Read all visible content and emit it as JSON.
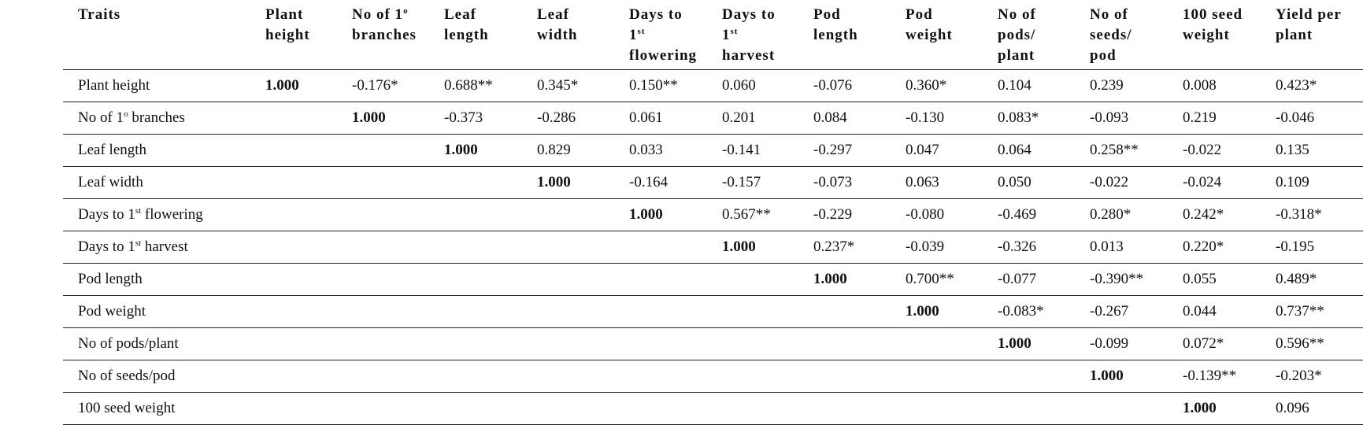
{
  "table": {
    "columns": [
      [
        {
          "text": "Traits"
        }
      ],
      [
        {
          "text": "Plant height"
        }
      ],
      [
        {
          "text": "No of 1"
        },
        {
          "text": "o",
          "sup": true
        },
        {
          "text": " branches"
        }
      ],
      [
        {
          "text": "Leaf length"
        }
      ],
      [
        {
          "text": "Leaf width"
        }
      ],
      [
        {
          "text": "Days to 1"
        },
        {
          "text": "st",
          "sup": true
        },
        {
          "text": " flowering"
        }
      ],
      [
        {
          "text": "Days to 1"
        },
        {
          "text": "st",
          "sup": true
        },
        {
          "text": " harvest"
        }
      ],
      [
        {
          "text": "Pod length"
        }
      ],
      [
        {
          "text": "Pod weight"
        }
      ],
      [
        {
          "text": "No of pods/ plant"
        }
      ],
      [
        {
          "text": "No of seeds/ pod"
        }
      ],
      [
        {
          "text": "100 seed weight"
        }
      ],
      [
        {
          "text": "Yield per plant"
        }
      ]
    ],
    "rows": [
      {
        "label": [
          {
            "text": "Plant height"
          }
        ],
        "cells": [
          "1.000",
          "-0.176*",
          "0.688**",
          "0.345*",
          "0.150**",
          "0.060",
          "-0.076",
          "0.360*",
          "0.104",
          "0.239",
          "0.008",
          "0.423*"
        ]
      },
      {
        "label": [
          {
            "text": "No of 1"
          },
          {
            "text": "o",
            "sup": true
          },
          {
            "text": " branches"
          }
        ],
        "cells": [
          null,
          "1.000",
          "-0.373",
          "-0.286",
          "0.061",
          "0.201",
          "0.084",
          "-0.130",
          "0.083*",
          "-0.093",
          "0.219",
          "-0.046"
        ]
      },
      {
        "label": [
          {
            "text": "Leaf length"
          }
        ],
        "cells": [
          null,
          null,
          "1.000",
          "0.829",
          "0.033",
          "-0.141",
          "-0.297",
          "0.047",
          "0.064",
          "0.258**",
          "-0.022",
          "0.135"
        ]
      },
      {
        "label": [
          {
            "text": "Leaf width"
          }
        ],
        "cells": [
          null,
          null,
          null,
          "1.000",
          "-0.164",
          "-0.157",
          "-0.073",
          "0.063",
          "0.050",
          "-0.022",
          "-0.024",
          "0.109"
        ]
      },
      {
        "label": [
          {
            "text": "Days to 1"
          },
          {
            "text": "st",
            "sup": true
          },
          {
            "text": " flowering"
          }
        ],
        "cells": [
          null,
          null,
          null,
          null,
          "1.000",
          "0.567**",
          "-0.229",
          "-0.080",
          "-0.469",
          "0.280*",
          "0.242*",
          "-0.318*"
        ]
      },
      {
        "label": [
          {
            "text": "Days to 1"
          },
          {
            "text": "st",
            "sup": true
          },
          {
            "text": " harvest"
          }
        ],
        "cells": [
          null,
          null,
          null,
          null,
          null,
          "1.000",
          "0.237*",
          "-0.039",
          "-0.326",
          "0.013",
          "0.220*",
          "-0.195"
        ]
      },
      {
        "label": [
          {
            "text": "Pod length"
          }
        ],
        "cells": [
          null,
          null,
          null,
          null,
          null,
          null,
          "1.000",
          "0.700**",
          "-0.077",
          "-0.390**",
          "0.055",
          "0.489*"
        ]
      },
      {
        "label": [
          {
            "text": "Pod weight"
          }
        ],
        "cells": [
          null,
          null,
          null,
          null,
          null,
          null,
          null,
          "1.000",
          "-0.083*",
          "-0.267",
          "0.044",
          "0.737**"
        ]
      },
      {
        "label": [
          {
            "text": "No of pods/plant"
          }
        ],
        "cells": [
          null,
          null,
          null,
          null,
          null,
          null,
          null,
          null,
          "1.000",
          "-0.099",
          "0.072*",
          "0.596**"
        ]
      },
      {
        "label": [
          {
            "text": "No of seeds/pod"
          }
        ],
        "cells": [
          null,
          null,
          null,
          null,
          null,
          null,
          null,
          null,
          null,
          "1.000",
          "-0.139**",
          "-0.203*"
        ]
      },
      {
        "label": [
          {
            "text": "100 seed weight"
          }
        ],
        "cells": [
          null,
          null,
          null,
          null,
          null,
          null,
          null,
          null,
          null,
          null,
          "1.000",
          "0.096"
        ]
      }
    ]
  }
}
